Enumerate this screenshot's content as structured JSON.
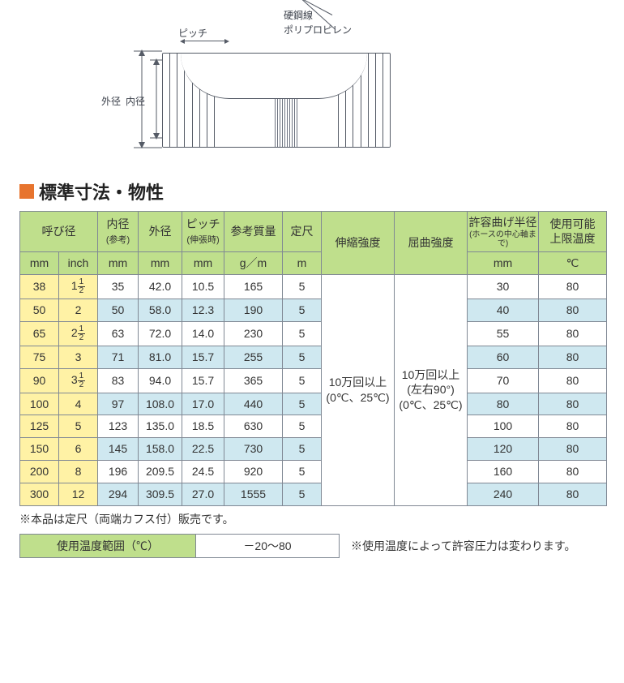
{
  "diagram": {
    "label_pitch": "ピッチ",
    "label_outer": "外径",
    "label_inner": "内径",
    "label_wire": "硬鋼線",
    "label_material": "ポリプロピレン"
  },
  "section_title": "標準寸法・物性",
  "table": {
    "headers": {
      "size": "呼び径",
      "inner": "内径",
      "inner_sub": "(参考)",
      "outer": "外径",
      "pitch": "ピッチ",
      "pitch_sub": "(伸張時)",
      "mass": "参考質量",
      "length": "定尺",
      "stretch": "伸縮強度",
      "bend": "屈曲強度",
      "radius": "許容曲げ半径",
      "radius_sub": "(ホースの中心軸まで)",
      "temp": "使用可能",
      "temp2": "上限温度"
    },
    "units": {
      "mm": "mm",
      "inch": "inch",
      "gpm": "g／m",
      "m": "m",
      "c": "℃"
    },
    "stretch_value": "10万回以上\n(0℃、25℃)",
    "bend_value": "10万回以上\n(左右90°)\n(0℃、25℃)",
    "rows": [
      {
        "mm": "38",
        "inch": "1½",
        "inner": "35",
        "outer": "42.0",
        "pitch": "10.5",
        "mass": "165",
        "len": "5",
        "radius": "30",
        "temp": "80",
        "blue": false
      },
      {
        "mm": "50",
        "inch": "2",
        "inner": "50",
        "outer": "58.0",
        "pitch": "12.3",
        "mass": "190",
        "len": "5",
        "radius": "40",
        "temp": "80",
        "blue": true
      },
      {
        "mm": "65",
        "inch": "2½",
        "inner": "63",
        "outer": "72.0",
        "pitch": "14.0",
        "mass": "230",
        "len": "5",
        "radius": "55",
        "temp": "80",
        "blue": false
      },
      {
        "mm": "75",
        "inch": "3",
        "inner": "71",
        "outer": "81.0",
        "pitch": "15.7",
        "mass": "255",
        "len": "5",
        "radius": "60",
        "temp": "80",
        "blue": true
      },
      {
        "mm": "90",
        "inch": "3½",
        "inner": "83",
        "outer": "94.0",
        "pitch": "15.7",
        "mass": "365",
        "len": "5",
        "radius": "70",
        "temp": "80",
        "blue": false
      },
      {
        "mm": "100",
        "inch": "4",
        "inner": "97",
        "outer": "108.0",
        "pitch": "17.0",
        "mass": "440",
        "len": "5",
        "radius": "80",
        "temp": "80",
        "blue": true
      },
      {
        "mm": "125",
        "inch": "5",
        "inner": "123",
        "outer": "135.0",
        "pitch": "18.5",
        "mass": "630",
        "len": "5",
        "radius": "100",
        "temp": "80",
        "blue": false
      },
      {
        "mm": "150",
        "inch": "6",
        "inner": "145",
        "outer": "158.0",
        "pitch": "22.5",
        "mass": "730",
        "len": "5",
        "radius": "120",
        "temp": "80",
        "blue": true
      },
      {
        "mm": "200",
        "inch": "8",
        "inner": "196",
        "outer": "209.5",
        "pitch": "24.5",
        "mass": "920",
        "len": "5",
        "radius": "160",
        "temp": "80",
        "blue": false
      },
      {
        "mm": "300",
        "inch": "12",
        "inner": "294",
        "outer": "309.5",
        "pitch": "27.0",
        "mass": "1555",
        "len": "5",
        "radius": "240",
        "temp": "80",
        "blue": true
      }
    ]
  },
  "note1": "※本品は定尺（両端カフス付）販売です。",
  "temp_range_label": "使用温度範囲（℃）",
  "temp_range_value": "－20～80",
  "note2": "※使用温度によって許容圧力は変わります。"
}
